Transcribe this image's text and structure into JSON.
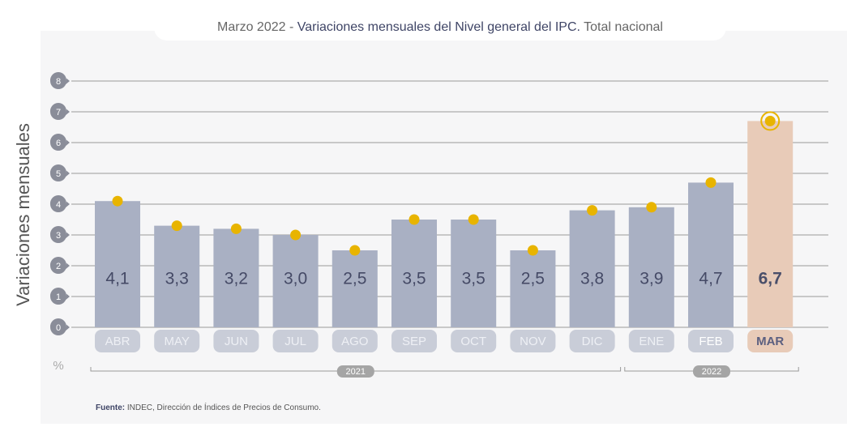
{
  "chart_data": {
    "type": "bar",
    "title_prefix": "Marzo 2022 -",
    "title": "Variaciones mensuales del Nivel general del IPC.",
    "title_suffix": "Total nacional",
    "y_label": "Variaciones mensuales",
    "unit": "%",
    "categories": [
      "ABR",
      "MAY",
      "JUN",
      "JUL",
      "AGO",
      "SEP",
      "OCT",
      "NOV",
      "DIC",
      "ENE",
      "FEB",
      "MAR"
    ],
    "values": [
      4.1,
      3.3,
      3.2,
      3.0,
      2.5,
      3.5,
      3.5,
      2.5,
      3.8,
      3.9,
      4.7,
      6.7
    ],
    "value_labels": [
      "4,1",
      "3,3",
      "3,2",
      "3,0",
      "2,5",
      "3,5",
      "3,5",
      "2,5",
      "3,8",
      "3,9",
      "4,7",
      "6,7"
    ],
    "colors": [
      "#a9b0c3",
      "#a9b0c3",
      "#a9b0c3",
      "#a9b0c3",
      "#a9b0c3",
      "#a9b0c3",
      "#a9b0c3",
      "#a9b0c3",
      "#a9b0c3",
      "#a9b0c3",
      "#a9b0c3",
      "#e8cbb8"
    ],
    "marker_color": "#e8b400",
    "ylim": [
      0,
      8
    ],
    "yticks": [
      0,
      1,
      2,
      3,
      4,
      5,
      6,
      7,
      8
    ],
    "grid": true,
    "year_groups": [
      "2021",
      "2022"
    ],
    "source_label": "Fuente:",
    "source": "INDEC, Dirección de Índices de Precios de Consumo."
  }
}
